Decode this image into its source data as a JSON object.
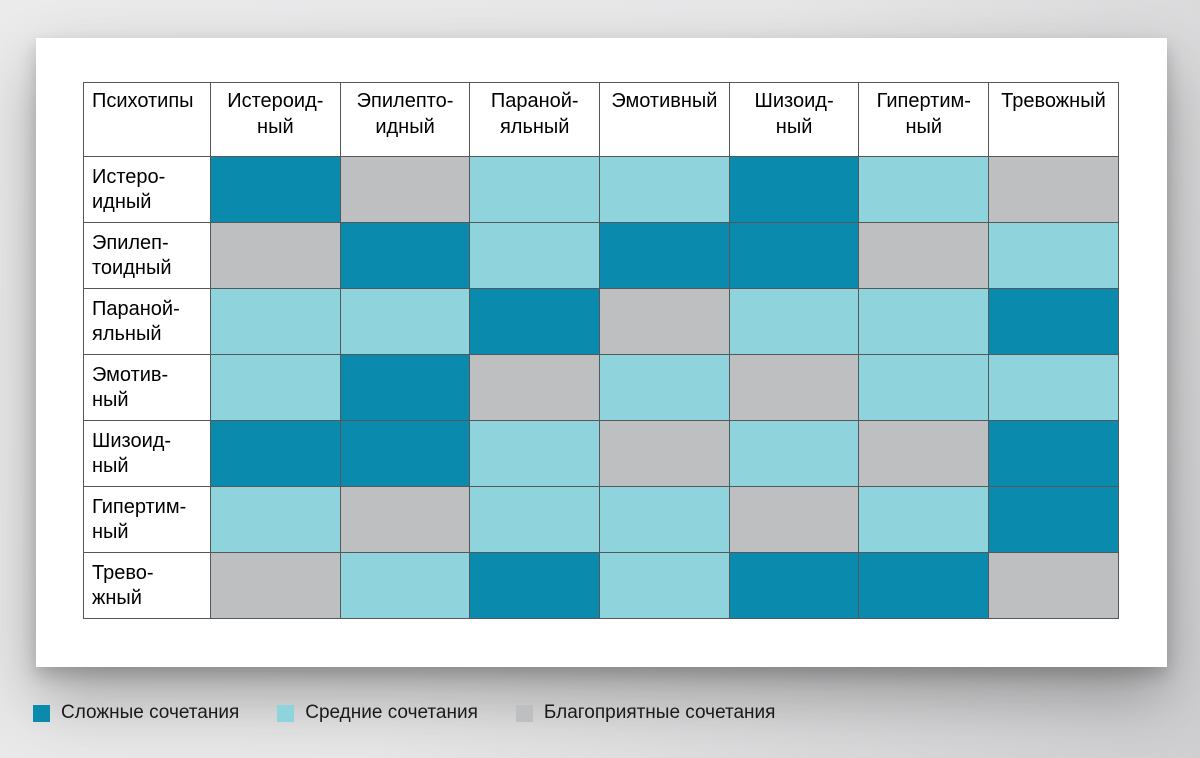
{
  "palette": {
    "hard": "#0a8aac",
    "medium": "#8fd3dc",
    "favorable": "#bdbfc1",
    "grid_line": "#54585a",
    "header_bg": "#ffffff",
    "card_bg": "#ffffff",
    "text": "#000000"
  },
  "table": {
    "corner_header": "Психотипы",
    "column_headers": [
      "Истероид-\nный",
      "Эпилепто-\nидный",
      "Параной-\nяльный",
      "Эмотивный",
      "Шизоид-\nный",
      "Гипертим-\nный",
      "Тревожный"
    ],
    "rows": [
      {
        "label": "Истеро-\nидный",
        "cells": [
          "hard",
          "favorable",
          "medium",
          "medium",
          "hard",
          "medium",
          "favorable"
        ]
      },
      {
        "label": "Эпилеп-\nтоидный",
        "cells": [
          "favorable",
          "hard",
          "medium",
          "hard",
          "hard",
          "favorable",
          "medium"
        ]
      },
      {
        "label": "Параной-\nяльный",
        "cells": [
          "medium",
          "medium",
          "hard",
          "favorable",
          "medium",
          "medium",
          "hard"
        ]
      },
      {
        "label": "Эмотив-\nный",
        "cells": [
          "medium",
          "hard",
          "favorable",
          "medium",
          "favorable",
          "medium",
          "medium"
        ]
      },
      {
        "label": "Шизоид-\nный",
        "cells": [
          "hard",
          "hard",
          "medium",
          "favorable",
          "medium",
          "favorable",
          "hard"
        ]
      },
      {
        "label": "Гипертим-\nный",
        "cells": [
          "medium",
          "favorable",
          "medium",
          "medium",
          "favorable",
          "medium",
          "hard"
        ]
      },
      {
        "label": "Трево-\nжный",
        "cells": [
          "favorable",
          "medium",
          "hard",
          "medium",
          "hard",
          "hard",
          "favorable"
        ]
      }
    ]
  },
  "legend": {
    "items": [
      {
        "key": "hard",
        "label": "Сложные сочетания",
        "color": "#0a8aac"
      },
      {
        "key": "medium",
        "label": "Средние сочетания",
        "color": "#8fd3dc"
      },
      {
        "key": "favorable",
        "label": "Благоприятные сочетания",
        "color": "#bdbfc1"
      }
    ]
  },
  "chart_data": {
    "type": "heatmap",
    "corner_label": "Психотипы",
    "x_categories": [
      "Истероидный",
      "Эпилептоидный",
      "Паранойяльный",
      "Эмотивный",
      "Шизоидный",
      "Гипертимный",
      "Тревожный"
    ],
    "y_categories": [
      "Истероидный",
      "Эпилептоидный",
      "Паранойяльный",
      "Эмотивный",
      "Шизоидный",
      "Гипертимный",
      "Тревожный"
    ],
    "category_legend": {
      "hard": "Сложные сочетания",
      "medium": "Средние сочетания",
      "favorable": "Благоприятные сочетания"
    },
    "colors": {
      "hard": "#0a8aac",
      "medium": "#8fd3dc",
      "favorable": "#bdbfc1"
    },
    "values": [
      [
        "hard",
        "favorable",
        "medium",
        "medium",
        "hard",
        "medium",
        "favorable"
      ],
      [
        "favorable",
        "hard",
        "medium",
        "hard",
        "hard",
        "favorable",
        "medium"
      ],
      [
        "medium",
        "medium",
        "hard",
        "favorable",
        "medium",
        "medium",
        "hard"
      ],
      [
        "medium",
        "hard",
        "favorable",
        "medium",
        "favorable",
        "medium",
        "medium"
      ],
      [
        "hard",
        "hard",
        "medium",
        "favorable",
        "medium",
        "favorable",
        "hard"
      ],
      [
        "medium",
        "favorable",
        "medium",
        "medium",
        "favorable",
        "medium",
        "hard"
      ],
      [
        "favorable",
        "medium",
        "hard",
        "medium",
        "hard",
        "hard",
        "favorable"
      ]
    ],
    "legend_position": "bottom",
    "grid": true
  }
}
